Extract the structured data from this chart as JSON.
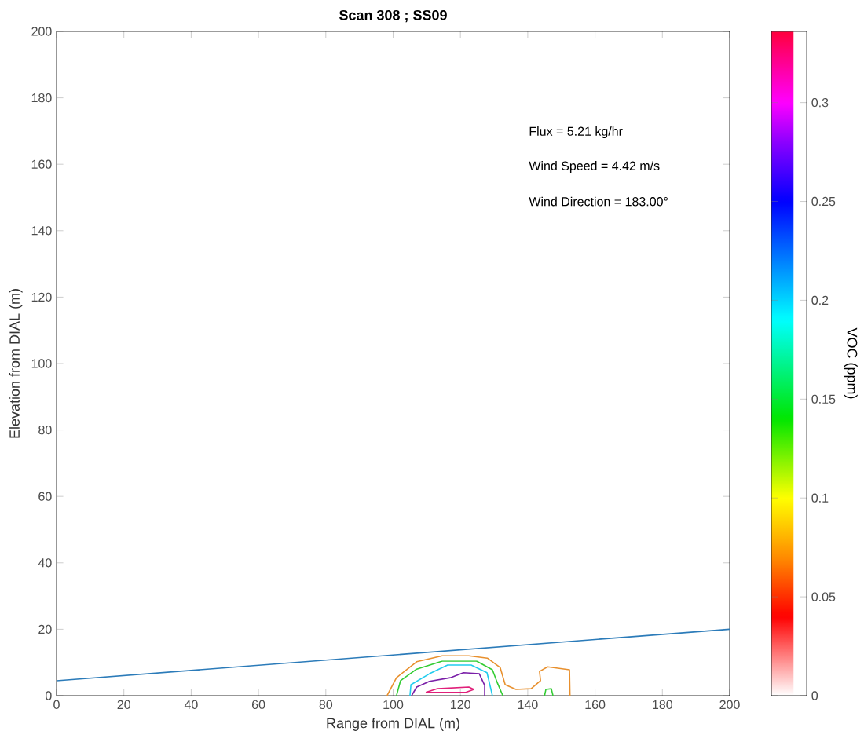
{
  "chart_data": {
    "type": "line",
    "title": "Scan 308 ; SS09",
    "xlabel": "Range from DIAL (m)",
    "ylabel": "Elevation from DIAL (m)",
    "clabel": "VOC (ppm)",
    "annotations": [
      "Flux = 5.21 kg/hr",
      "Wind Speed = 4.42 m/s",
      "Wind Direction = 183.00°"
    ],
    "xlim": [
      0,
      200
    ],
    "ylim": [
      0,
      200
    ],
    "xticks": [
      0,
      20,
      40,
      60,
      80,
      100,
      120,
      140,
      160,
      180,
      200
    ],
    "yticks": [
      0,
      20,
      40,
      60,
      80,
      100,
      120,
      140,
      160,
      180,
      200
    ],
    "clim": [
      0,
      0.336
    ],
    "cticks": [
      0,
      0.05,
      0.1,
      0.15,
      0.2,
      0.25,
      0.3
    ],
    "grid": false,
    "marker": "none",
    "line_style": "solid",
    "series": [
      {
        "color": "#2b7bb9",
        "x": [
          0,
          200
        ],
        "values": [
          4.5,
          20
        ]
      },
      {
        "color": "#e8902e",
        "x": [
          98.2,
          101,
          107,
          114.6,
          122.5,
          128,
          131.8,
          133.3,
          136.5,
          141,
          143.8,
          143.5,
          145.9,
          152.4,
          152.6
        ],
        "values": [
          0,
          5.4,
          10.2,
          12,
          12,
          11.3,
          8.5,
          3.3,
          1.9,
          2.1,
          4.5,
          7.3,
          8.7,
          7.8,
          0
        ]
      },
      {
        "color": "#33cc33",
        "x": [
          101,
          102.2,
          107,
          114.6,
          124.8,
          129.5,
          131,
          132.6
        ],
        "values": [
          0,
          4.5,
          8,
          10.4,
          10.4,
          7.8,
          3.8,
          0
        ]
      },
      {
        "color": "#33cc33",
        "x": [
          145,
          145.4,
          147,
          147.5
        ],
        "values": [
          0,
          1.9,
          2.1,
          0
        ]
      },
      {
        "color": "#22ccee",
        "x": [
          105,
          105.3,
          110.8,
          116.2,
          123.2,
          127.9,
          129.5
        ],
        "values": [
          0,
          3.3,
          6.6,
          9.2,
          9.2,
          6.9,
          0
        ]
      },
      {
        "color": "#7a1fa8",
        "x": [
          105.5,
          107,
          110.8,
          117,
          120.9,
          125.6,
          127.2,
          127.2
        ],
        "values": [
          0,
          2.6,
          4.3,
          5.4,
          6.9,
          6.6,
          3.1,
          0
        ]
      },
      {
        "color": "#e0207a",
        "x": [
          109.7,
          113.2,
          122.5,
          124
        ],
        "values": [
          1,
          2.1,
          2.6,
          1.9
        ]
      },
      {
        "color": "#e0207a",
        "x": [
          109.7,
          121.6,
          124
        ],
        "values": [
          1,
          1,
          1.9
        ]
      }
    ]
  }
}
